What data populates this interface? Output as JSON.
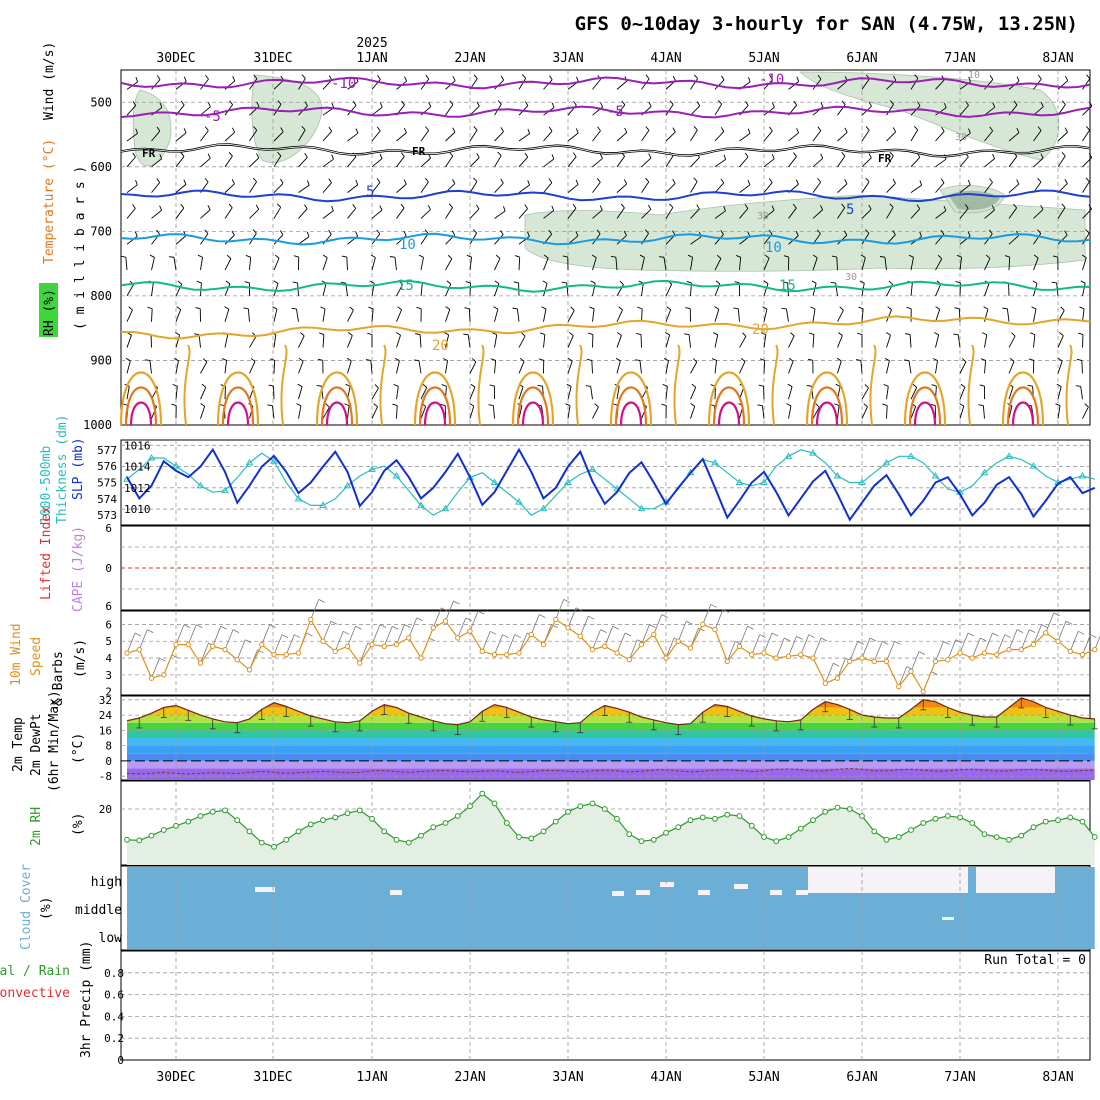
{
  "title": "GFS 0~10day 3-hourly for SAN (4.75W, 13.25N)",
  "year_label": "2025",
  "dates": [
    "30DEC",
    "31DEC",
    "1JAN",
    "2JAN",
    "3JAN",
    "4JAN",
    "5JAN",
    "6JAN",
    "7JAN",
    "8JAN"
  ],
  "run_total_label": "Run Total = 0",
  "colors": {
    "wind_barb": "#000000",
    "freezing": "#000000",
    "temp_cold": "#9a1fb5",
    "temp_cool": "#1f3fd0",
    "temp_mild": "#1a9be0",
    "temp_warm": "#12b98c",
    "temp_hot1": "#e3a52a",
    "temp_hot2": "#e07820",
    "temp_hot3": "#d0108a",
    "rh_fill": "#cfe3cf",
    "slp": "#1030d0",
    "thickness": "#2bbcc0",
    "lifted_zero": "#e03030",
    "wind10m": "#e0901c",
    "rh2m": "#2e9a2e",
    "cloud": "#6baed6"
  },
  "panels": {
    "upper_air": {
      "labels": [
        "RH (%)",
        "Temperature (°C)",
        "Wind (m/s)"
      ],
      "axis_label": "( m i l l i b a r s )",
      "contour_labels": {
        "minus10": "-10",
        "minus5": "-5",
        "fr": "FR",
        "five": "5",
        "ten": "10",
        "fifteen": "15",
        "twenty": "20",
        "twenty_five": "25",
        "thirty": "30",
        "rh10": "10",
        "rh30": "30"
      }
    },
    "slp": {
      "labels": [
        "1000-500mb",
        "Thickness (dm)",
        "SLP (mb)"
      ]
    },
    "cape": {
      "labels": [
        "Lifted Index",
        "CAPE (J/kg)"
      ]
    },
    "wind10m": {
      "labels": [
        "10m Wind",
        "Speed",
        "& Barbs",
        "(m/s)"
      ]
    },
    "temp2m": {
      "labels": [
        "2m Temp",
        "2m DewPt",
        "(6hr Min/Max)",
        "(°C)"
      ]
    },
    "rh2m": {
      "labels": [
        "2m RH",
        "(%)"
      ]
    },
    "cloud": {
      "labels": [
        "Cloud Cover",
        "(%)"
      ]
    },
    "precip": {
      "labels": [
        "Total / Rain",
        "Convective",
        "3hr Precip (mm)"
      ]
    }
  },
  "chart_data": [
    {
      "type": "heatmap",
      "panel": "Upper-air cross section",
      "x": [
        "30DEC",
        "31DEC",
        "1JAN",
        "2JAN",
        "3JAN",
        "4JAN",
        "5JAN",
        "6JAN",
        "7JAN",
        "8JAN"
      ],
      "yticks": [
        "500",
        "600",
        "700",
        "800",
        "900",
        "1000"
      ],
      "ylim": [
        1000,
        450
      ],
      "isotherms": [
        {
          "name": "-10",
          "level": 470
        },
        {
          "name": "-5",
          "level": 515
        },
        {
          "name": "FR",
          "level": 573
        },
        {
          "name": "5",
          "level": 645
        },
        {
          "name": "10",
          "level": 712
        },
        {
          "name": "15",
          "level": 785
        },
        {
          "name": "20",
          "level": 860
        }
      ]
    },
    {
      "type": "line",
      "panel": "SLP & Thickness",
      "yticks_left": [
        "573",
        "574",
        "575",
        "576",
        "577"
      ],
      "yticks_right": [
        "1010",
        "1012",
        "1014",
        "1016"
      ],
      "series": [
        {
          "name": "SLP (mb)",
          "values": [
            1013.0,
            1011.0,
            1012.2,
            1014.5,
            1013.6,
            1013.0,
            1014.0,
            1015.6,
            1013.5,
            1010.6,
            1012.2,
            1014.0,
            1015.0,
            1013.5,
            1011.5,
            1012.5,
            1014.0,
            1015.4,
            1013.5,
            1010.3,
            1011.6,
            1013.6,
            1014.6,
            1013.0,
            1011.0,
            1012.0,
            1013.5,
            1015.2,
            1013.0,
            1010.4,
            1011.6,
            1013.6,
            1015.6,
            1013.5,
            1011.0,
            1012.0,
            1014.0,
            1015.4,
            1012.6,
            1010.5,
            1011.6,
            1013.4,
            1014.4,
            1012.5,
            1010.5,
            1012.0,
            1013.4,
            1014.7,
            1012.0,
            1009.2,
            1010.8,
            1012.5,
            1013.5,
            1011.6,
            1009.4,
            1011.0,
            1012.6,
            1013.6,
            1011.4,
            1009.0,
            1010.6,
            1012.2,
            1013.2,
            1011.4,
            1009.4,
            1010.8,
            1012.5,
            1013.0,
            1011.4,
            1009.4,
            1010.6,
            1012.3,
            1013.0,
            1011.4,
            1009.3,
            1010.8,
            1012.4,
            1013.0,
            1011.5,
            1012.0
          ]
        },
        {
          "name": "1000-500mb Thickness (dm)",
          "values": [
            575.2,
            575.8,
            576.5,
            576.5,
            576.0,
            575.5,
            574.8,
            574.4,
            574.5,
            575.3,
            576.2,
            576.8,
            576.3,
            575.0,
            574.0,
            573.6,
            573.6,
            574.0,
            574.8,
            575.4,
            575.8,
            576.0,
            575.4,
            574.5,
            573.6,
            573.0,
            573.4,
            574.4,
            575.3,
            575.6,
            575.0,
            574.4,
            573.8,
            573.0,
            573.4,
            574.2,
            575.0,
            575.5,
            575.8,
            575.2,
            574.6,
            574.0,
            573.4,
            573.4,
            573.8,
            574.6,
            575.6,
            576.4,
            576.2,
            575.6,
            575.0,
            574.8,
            575.0,
            576.0,
            576.6,
            577.0,
            576.8,
            576.2,
            575.4,
            575.0,
            575.0,
            575.6,
            576.2,
            576.6,
            576.6,
            576.2,
            575.4,
            574.6,
            574.4,
            574.8,
            575.6,
            576.2,
            576.6,
            576.4,
            576.0,
            575.4,
            575.0,
            575.2,
            575.4,
            575.2
          ]
        }
      ]
    },
    {
      "type": "line",
      "panel": "Lifted Index & CAPE",
      "yticks": [
        "6",
        "3",
        "0",
        "-3",
        "-6"
      ],
      "yticks_shown": [
        "6",
        "0",
        "6"
      ],
      "ylim": [
        -6,
        6
      ],
      "series": []
    },
    {
      "type": "line",
      "panel": "10m Wind Speed",
      "yticks": [
        "2",
        "3",
        "4",
        "5",
        "6"
      ],
      "ylim": [
        1.8,
        6.8
      ],
      "series": [
        {
          "name": "10m Wind Speed",
          "values": [
            4.3,
            4.5,
            2.8,
            3.0,
            4.8,
            4.8,
            3.7,
            4.7,
            4.5,
            3.9,
            3.3,
            4.8,
            4.2,
            4.2,
            4.3,
            6.3,
            5.0,
            4.4,
            4.7,
            3.7,
            4.8,
            4.7,
            4.8,
            5.2,
            4.0,
            5.8,
            6.2,
            5.2,
            5.6,
            4.4,
            4.2,
            4.2,
            4.3,
            5.4,
            4.8,
            6.3,
            5.8,
            5.3,
            4.5,
            4.7,
            4.3,
            3.9,
            4.8,
            5.4,
            4.0,
            5.0,
            4.6,
            6.0,
            5.7,
            3.8,
            4.7,
            4.2,
            4.3,
            4.0,
            4.1,
            4.2,
            4.0,
            2.5,
            2.8,
            3.8,
            4.0,
            3.8,
            3.8,
            2.3,
            3.2,
            2.0,
            3.8,
            3.9,
            4.3,
            4.0,
            4.3,
            4.2,
            4.5,
            4.5,
            4.8,
            5.5,
            5.0,
            4.4,
            4.2,
            4.5
          ]
        }
      ]
    },
    {
      "type": "area",
      "panel": "2m Temperature & Dew Point",
      "yticks": [
        "-8",
        "0",
        "8",
        "16",
        "24",
        "32"
      ],
      "ylim": [
        -10,
        34
      ],
      "series": [
        {
          "name": "2m Temp",
          "values": [
            21.0,
            22.5,
            25.0,
            28.0,
            29.0,
            26.5,
            24.0,
            22.0,
            20.5,
            20.0,
            22.0,
            27.0,
            30.5,
            28.5,
            26.0,
            23.5,
            22.0,
            20.5,
            20.0,
            21.0,
            26.0,
            29.5,
            28.0,
            25.0,
            23.0,
            21.0,
            19.5,
            19.0,
            20.5,
            26.0,
            29.5,
            28.0,
            25.5,
            23.0,
            21.5,
            20.5,
            19.5,
            20.0,
            25.5,
            29.0,
            27.5,
            25.5,
            23.0,
            21.5,
            20.0,
            19.0,
            19.5,
            25.5,
            29.5,
            28.5,
            26.0,
            23.5,
            22.0,
            21.0,
            20.5,
            21.5,
            27.0,
            31.0,
            29.5,
            27.0,
            24.0,
            23.0,
            22.5,
            22.5,
            27.0,
            32.0,
            31.0,
            28.0,
            25.5,
            24.0,
            23.0,
            23.0,
            28.0,
            33.0,
            31.0,
            28.0,
            26.0,
            24.0,
            22.5,
            22.0
          ]
        },
        {
          "name": "2m DewPt",
          "values": [
            -6.5,
            -6.8,
            -6.5,
            -6.0,
            -6.5,
            -6.8,
            -6.5,
            -6.2,
            -6.4,
            -6.6,
            -6.0,
            -5.5,
            -6.0,
            -6.5,
            -6.2,
            -5.8,
            -5.5,
            -5.8,
            -6.2,
            -6.0,
            -5.2,
            -5.0,
            -5.6,
            -6.0,
            -5.6,
            -5.2,
            -5.0,
            -5.4,
            -5.8,
            -5.4,
            -5.2,
            -5.6,
            -6.0,
            -5.6,
            -5.0,
            -5.0,
            -5.4,
            -5.8,
            -5.2,
            -4.8,
            -5.2,
            -5.8,
            -5.4,
            -4.8,
            -4.6,
            -5.2,
            -5.8,
            -5.4,
            -4.8,
            -4.6,
            -5.0,
            -5.6,
            -5.2,
            -4.4,
            -4.2,
            -4.6,
            -5.4,
            -5.2,
            -4.4,
            -4.0,
            -4.4,
            -5.2,
            -5.2,
            -4.6,
            -4.4,
            -4.8,
            -5.4,
            -5.2,
            -4.6,
            -4.4,
            -4.8,
            -5.4,
            -5.2,
            -4.6,
            -4.4,
            -4.8,
            -5.4,
            -5.4,
            -5.0,
            -4.8
          ]
        }
      ]
    },
    {
      "type": "area",
      "panel": "2m Relative Humidity",
      "yticks": [
        "20"
      ],
      "ylim": [
        0,
        30
      ],
      "series": [
        {
          "name": "2m RH",
          "values": [
            9.0,
            8.8,
            10.5,
            12.5,
            14.0,
            15.5,
            17.5,
            19.0,
            19.5,
            16.0,
            12.0,
            8.0,
            6.5,
            9.0,
            12.0,
            14.5,
            16.0,
            17.0,
            18.5,
            19.5,
            16.5,
            12.0,
            9.0,
            8.0,
            10.5,
            13.5,
            15.0,
            17.5,
            21.0,
            25.5,
            22.0,
            15.0,
            10.0,
            9.5,
            12.0,
            15.5,
            19.0,
            21.0,
            22.0,
            20.0,
            16.5,
            11.0,
            8.5,
            9.0,
            11.5,
            13.5,
            16.0,
            17.0,
            16.5,
            18.0,
            17.5,
            14.0,
            10.0,
            8.5,
            10.0,
            13.0,
            16.0,
            19.0,
            20.5,
            20.0,
            17.5,
            12.0,
            9.0,
            10.0,
            12.5,
            15.0,
            16.5,
            17.5,
            17.0,
            15.0,
            11.0,
            10.0,
            9.0,
            10.5,
            13.5,
            15.5,
            16.0,
            17.0,
            15.5,
            10.0
          ]
        }
      ]
    },
    {
      "type": "heatmap",
      "panel": "Cloud Cover",
      "yticks": [
        "low",
        "middle",
        "high"
      ]
    },
    {
      "type": "bar",
      "panel": "3hr Precip",
      "yticks": [
        "0",
        "0.2",
        "0.4",
        "0.6",
        "0.8"
      ],
      "ylim": [
        0,
        1
      ],
      "series": []
    }
  ]
}
